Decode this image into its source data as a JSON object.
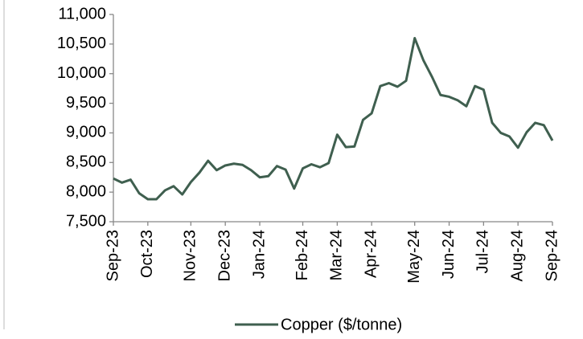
{
  "chart_data": {
    "type": "line",
    "categories": [
      "Sep-23",
      null,
      null,
      null,
      "Oct-23",
      null,
      null,
      null,
      null,
      "Nov-23",
      null,
      null,
      null,
      "Dec-23",
      null,
      null,
      null,
      "Jan-24",
      null,
      null,
      null,
      null,
      "Feb-24",
      null,
      null,
      null,
      "Mar-24",
      null,
      null,
      null,
      "Apr-24",
      null,
      null,
      null,
      null,
      "May-24",
      null,
      null,
      null,
      "Jun-24",
      null,
      null,
      null,
      "Jul-24",
      null,
      null,
      null,
      "Aug-24",
      null,
      null,
      null,
      "Sep-24"
    ],
    "series": [
      {
        "name": "Copper ($/tonne)",
        "color": "#3f5f4f",
        "values": [
          8230,
          8160,
          8210,
          7980,
          7880,
          7880,
          8030,
          8100,
          7960,
          8170,
          8330,
          8530,
          8370,
          8450,
          8480,
          8460,
          8370,
          8250,
          8270,
          8440,
          8380,
          8060,
          8400,
          8470,
          8420,
          8490,
          8970,
          8760,
          8770,
          9220,
          9330,
          9790,
          9840,
          9780,
          9880,
          10600,
          10230,
          9950,
          9640,
          9610,
          9550,
          9450,
          9790,
          9730,
          9170,
          9000,
          8940,
          8750,
          9010,
          9170,
          9130,
          8870
        ]
      }
    ],
    "ylim": [
      7500,
      11000
    ],
    "yticks": [
      {
        "value": 7500,
        "label": "7,500"
      },
      {
        "value": 8000,
        "label": "8,000"
      },
      {
        "value": 8500,
        "label": "8,500"
      },
      {
        "value": 9000,
        "label": "9,000"
      },
      {
        "value": 9500,
        "label": "9,500"
      },
      {
        "value": 10000,
        "label": "10,000"
      },
      {
        "value": 10500,
        "label": "10,500"
      },
      {
        "value": 11000,
        "label": "11,000"
      }
    ],
    "grid": false,
    "legend": "bottom"
  }
}
